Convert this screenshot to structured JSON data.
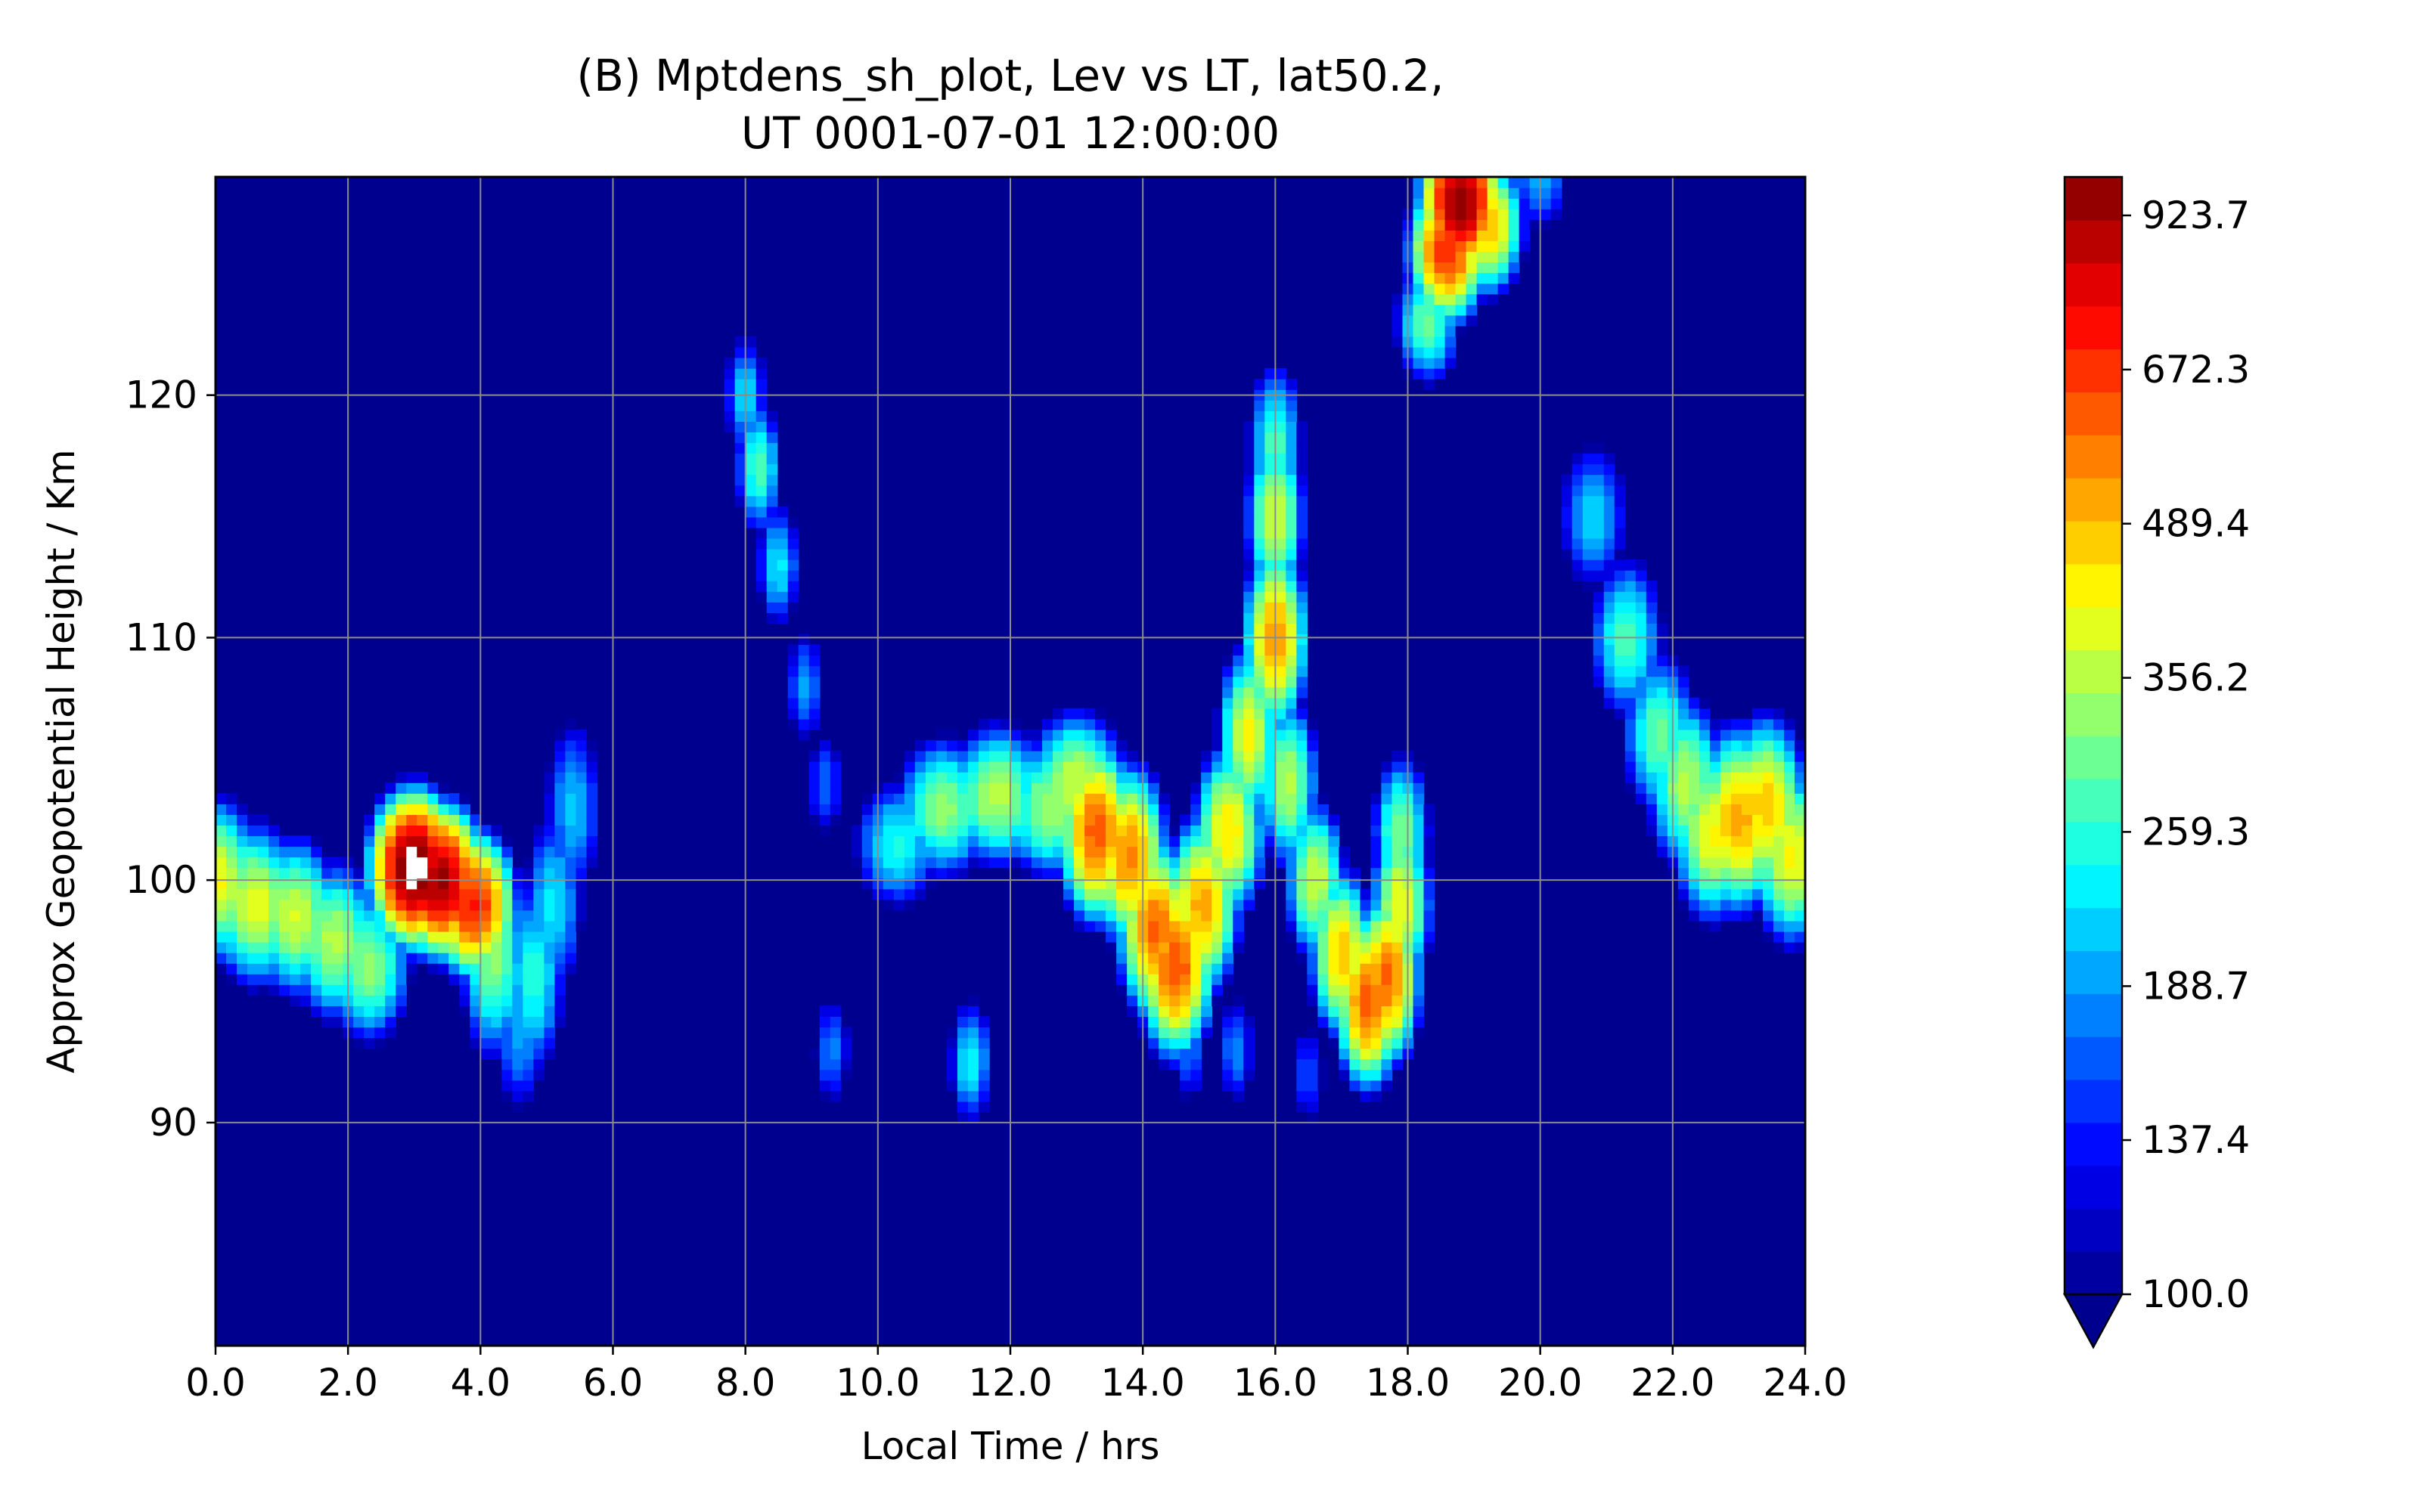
{
  "chart_data": {
    "type": "heatmap",
    "title_line1": "(B) Mptdens_sh_plot, Lev vs LT, lat50.2,",
    "title_line2": "UT 0001-07-01 12:00:00",
    "xlabel": "Local Time / hrs",
    "ylabel": "Approx Geopotential Height / Km",
    "xlim": [
      0,
      24
    ],
    "ylim": [
      80.8,
      129
    ],
    "x_ticks": [
      "0.0",
      "2.0",
      "4.0",
      "6.0",
      "8.0",
      "10.0",
      "12.0",
      "14.0",
      "16.0",
      "18.0",
      "20.0",
      "22.0",
      "24.0"
    ],
    "y_ticks": [
      "90",
      "100",
      "110",
      "120"
    ],
    "grid": true,
    "colorbar": {
      "min": 100.0,
      "max": 1000.0,
      "extend": "min",
      "tick_labels": [
        "100.0",
        "137.4",
        "188.7",
        "259.3",
        "356.2",
        "489.4",
        "672.3",
        "923.7"
      ],
      "colormap": [
        "#00008f",
        "#0000ff",
        "#0080ff",
        "#00ffff",
        "#80ff80",
        "#ffff00",
        "#ff8000",
        "#ff0000",
        "#800000"
      ]
    },
    "background_value": 100,
    "features": [
      {
        "name": "night-layer",
        "points": [
          [
            0.0,
            100,
            420
          ],
          [
            0.6,
            99,
            400
          ],
          [
            1.2,
            98.5,
            380
          ],
          [
            1.8,
            97.5,
            360
          ],
          [
            2.3,
            96.5,
            330
          ]
        ],
        "sx": 0.45,
        "sy": 2.2
      },
      {
        "name": "peak-3h",
        "points": [
          [
            3.0,
            100.5,
            1100
          ],
          [
            3.4,
            100,
            950
          ],
          [
            3.9,
            99,
            720
          ]
        ],
        "sx": 0.38,
        "sy": 1.8
      },
      {
        "name": "tail-4h",
        "points": [
          [
            4.2,
            97,
            330
          ],
          [
            4.8,
            96,
            260
          ],
          [
            5.1,
            99,
            230
          ],
          [
            5.4,
            103,
            210
          ],
          [
            4.6,
            94,
            200
          ]
        ],
        "sx": 0.35,
        "sy": 3.0
      },
      {
        "name": "streak-8h",
        "points": [
          [
            8.0,
            120,
            220
          ],
          [
            8.2,
            117,
            280
          ],
          [
            8.5,
            113,
            230
          ],
          [
            8.9,
            108,
            190
          ],
          [
            9.2,
            104,
            170
          ]
        ],
        "sx": 0.25,
        "sy": 2.0
      },
      {
        "name": "blob-9h",
        "points": [
          [
            9.3,
            93,
            180
          ],
          [
            11.4,
            92.5,
            240
          ],
          [
            14.7,
            93,
            170
          ],
          [
            15.4,
            93,
            180
          ],
          [
            16.5,
            92,
            160
          ]
        ],
        "sx": 0.25,
        "sy": 2.0
      },
      {
        "name": "band-11h",
        "points": [
          [
            10.3,
            101.5,
            250
          ],
          [
            11.0,
            103,
            330
          ],
          [
            11.8,
            103.5,
            360
          ],
          [
            12.6,
            103,
            340
          ],
          [
            13.0,
            104,
            380
          ]
        ],
        "sx": 0.5,
        "sy": 2.0
      },
      {
        "name": "ridge-13h",
        "points": [
          [
            13.3,
            102,
            620
          ],
          [
            13.8,
            101,
            560
          ],
          [
            14.2,
            98,
            600
          ],
          [
            14.5,
            96.5,
            640
          ],
          [
            14.9,
            99,
            520
          ],
          [
            15.3,
            102,
            450
          ]
        ],
        "sx": 0.35,
        "sy": 2.3
      },
      {
        "name": "column-16h",
        "points": [
          [
            15.6,
            106,
            420
          ],
          [
            16.0,
            110,
            540
          ],
          [
            16.0,
            115,
            380
          ],
          [
            16.0,
            118,
            280
          ],
          [
            16.2,
            104,
            360
          ]
        ],
        "sx": 0.3,
        "sy": 2.4
      },
      {
        "name": "ridge-17h",
        "points": [
          [
            16.6,
            100,
            380
          ],
          [
            17.0,
            97,
            480
          ],
          [
            17.4,
            95,
            620
          ],
          [
            17.7,
            96,
            600
          ],
          [
            17.9,
            99,
            420
          ],
          [
            17.9,
            102,
            320
          ]
        ],
        "sx": 0.3,
        "sy": 2.2
      },
      {
        "name": "top-19h",
        "points": [
          [
            18.8,
            128,
            1000
          ],
          [
            18.6,
            126,
            700
          ],
          [
            19.2,
            127,
            500
          ],
          [
            18.3,
            123,
            300
          ],
          [
            20.0,
            129,
            200
          ]
        ],
        "sx": 0.35,
        "sy": 1.8
      },
      {
        "name": "descending-21h",
        "points": [
          [
            20.8,
            115,
            220
          ],
          [
            21.3,
            110,
            280
          ],
          [
            21.8,
            106,
            300
          ],
          [
            22.2,
            104,
            360
          ],
          [
            22.6,
            102,
            420
          ],
          [
            23.0,
            102.5,
            520
          ],
          [
            23.4,
            103,
            480
          ],
          [
            23.8,
            101,
            420
          ]
        ],
        "sx": 0.4,
        "sy": 2.4
      }
    ]
  }
}
